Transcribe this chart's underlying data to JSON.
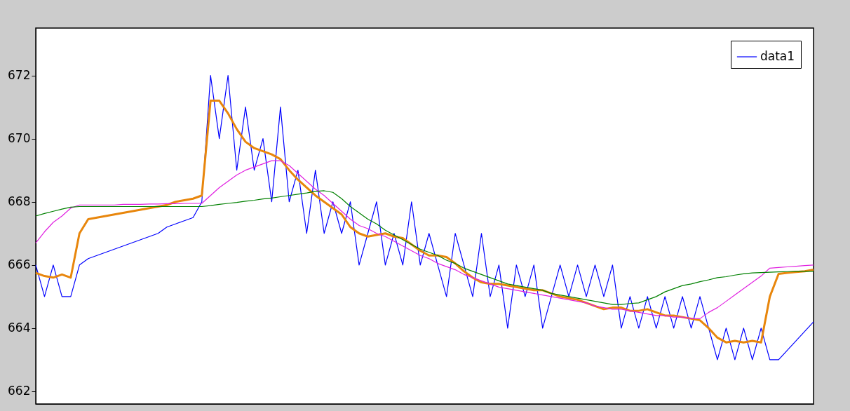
{
  "chart_data": {
    "type": "line",
    "categories": [
      null,
      null,
      null,
      null,
      null,
      null,
      null,
      null,
      null,
      null,
      null,
      null,
      null,
      null,
      null,
      null,
      null,
      null,
      null,
      null,
      null,
      null,
      null,
      null,
      null,
      null,
      null,
      null,
      null,
      null,
      null,
      null,
      null,
      null,
      null,
      null,
      null,
      null,
      null,
      null,
      null,
      null,
      null,
      null,
      null,
      null,
      null,
      null,
      null,
      null,
      null,
      null,
      null,
      null,
      null,
      null,
      null,
      null,
      null,
      null,
      null,
      null,
      null,
      null,
      null,
      null,
      null,
      null,
      null,
      null,
      null,
      null,
      null,
      null,
      null,
      null,
      null,
      null,
      null,
      null,
      null,
      null,
      null,
      null,
      null,
      null,
      null,
      null,
      null,
      null
    ],
    "ylim": [
      661.6,
      673.5
    ],
    "yticks": [
      662,
      664,
      666,
      668,
      670,
      672
    ],
    "tick_labels": "y",
    "grid": false,
    "legend": "top right",
    "series": [
      {
        "name": "data1",
        "color": "#0000ff",
        "values": [
          666,
          665,
          666,
          665,
          665,
          666,
          666.2,
          666.3,
          666.4,
          666.5,
          666.6,
          666.7,
          666.8,
          666.9,
          667.0,
          667.2,
          667.3,
          667.4,
          667.5,
          668,
          672,
          670,
          672,
          669,
          671,
          669,
          670,
          668,
          671,
          668,
          669,
          667,
          669,
          667,
          668,
          667,
          668,
          666,
          667,
          668,
          666,
          667,
          666,
          668,
          666,
          667,
          666,
          665,
          667,
          666,
          665,
          667,
          665,
          666,
          664,
          666,
          665,
          666,
          664,
          665,
          666,
          665,
          666,
          665,
          666,
          665,
          666,
          664,
          665,
          664,
          665,
          664,
          665,
          664,
          665,
          664,
          665,
          664,
          663,
          664,
          663,
          664,
          663,
          664,
          663,
          663,
          663.3,
          663.6,
          663.9,
          664.2
        ]
      },
      {
        "color": "#e8860c",
        "values": [
          665.75,
          665.65,
          665.6,
          665.7,
          665.6,
          667.0,
          667.45,
          667.5,
          667.55,
          667.6,
          667.65,
          667.7,
          667.75,
          667.8,
          667.85,
          667.9,
          668.0,
          668.05,
          668.1,
          668.2,
          671.2,
          671.2,
          670.8,
          670.3,
          669.9,
          669.7,
          669.6,
          669.5,
          669.35,
          669.0,
          668.7,
          668.45,
          668.2,
          668.0,
          667.8,
          667.6,
          667.2,
          667.0,
          666.9,
          666.95,
          667.0,
          666.9,
          666.85,
          666.65,
          666.45,
          666.3,
          666.3,
          666.25,
          666.05,
          665.8,
          665.6,
          665.45,
          665.4,
          665.4,
          665.35,
          665.3,
          665.25,
          665.2,
          665.2,
          665.1,
          665.0,
          664.95,
          664.9,
          664.8,
          664.7,
          664.6,
          664.65,
          664.65,
          664.55,
          664.55,
          664.6,
          664.5,
          664.4,
          664.4,
          664.35,
          664.3,
          664.25,
          664.0,
          663.7,
          663.55,
          663.6,
          663.55,
          663.6,
          663.55,
          665.0,
          665.72,
          665.75,
          665.78,
          665.8,
          665.85
        ]
      },
      {
        "color": "#e020e0",
        "values": [
          666.7,
          667.05,
          667.35,
          667.55,
          667.8,
          667.9,
          667.9,
          667.9,
          667.9,
          667.9,
          667.92,
          667.92,
          667.92,
          667.93,
          667.93,
          667.94,
          667.94,
          667.95,
          667.95,
          667.95,
          668.2,
          668.45,
          668.65,
          668.85,
          669.0,
          669.1,
          669.2,
          669.3,
          669.3,
          669.15,
          668.9,
          668.65,
          668.4,
          668.2,
          667.95,
          667.7,
          667.45,
          667.25,
          667.15,
          667.0,
          666.9,
          666.75,
          666.6,
          666.45,
          666.3,
          666.2,
          666.05,
          665.95,
          665.85,
          665.7,
          665.6,
          665.5,
          665.4,
          665.3,
          665.25,
          665.2,
          665.15,
          665.1,
          665.05,
          665.0,
          664.95,
          664.9,
          664.85,
          664.8,
          664.7,
          664.65,
          664.6,
          664.6,
          664.55,
          664.5,
          664.45,
          664.4,
          664.4,
          664.35,
          664.35,
          664.3,
          664.3,
          664.5,
          664.65,
          664.85,
          665.05,
          665.25,
          665.45,
          665.65,
          665.9,
          665.92,
          665.94,
          665.96,
          665.98,
          666.0
        ]
      },
      {
        "color": "#008000",
        "values": [
          667.55,
          667.63,
          667.7,
          667.77,
          667.83,
          667.85,
          667.85,
          667.85,
          667.85,
          667.85,
          667.85,
          667.85,
          667.85,
          667.85,
          667.85,
          667.85,
          667.85,
          667.85,
          667.85,
          667.85,
          667.88,
          667.92,
          667.95,
          667.98,
          668.02,
          668.05,
          668.09,
          668.12,
          668.16,
          668.2,
          668.24,
          668.28,
          668.33,
          668.35,
          668.3,
          668.1,
          667.85,
          667.65,
          667.45,
          667.3,
          667.1,
          666.95,
          666.8,
          666.65,
          666.5,
          666.4,
          666.3,
          666.15,
          666.05,
          665.9,
          665.8,
          665.7,
          665.6,
          665.5,
          665.4,
          665.35,
          665.3,
          665.25,
          665.2,
          665.1,
          665.05,
          665.0,
          664.95,
          664.9,
          664.85,
          664.8,
          664.75,
          664.75,
          664.78,
          664.8,
          664.9,
          665.0,
          665.15,
          665.25,
          665.35,
          665.4,
          665.47,
          665.53,
          665.6,
          665.63,
          665.68,
          665.72,
          665.75,
          665.76,
          665.77,
          665.78,
          665.79,
          665.8,
          665.8,
          665.8
        ]
      }
    ]
  }
}
